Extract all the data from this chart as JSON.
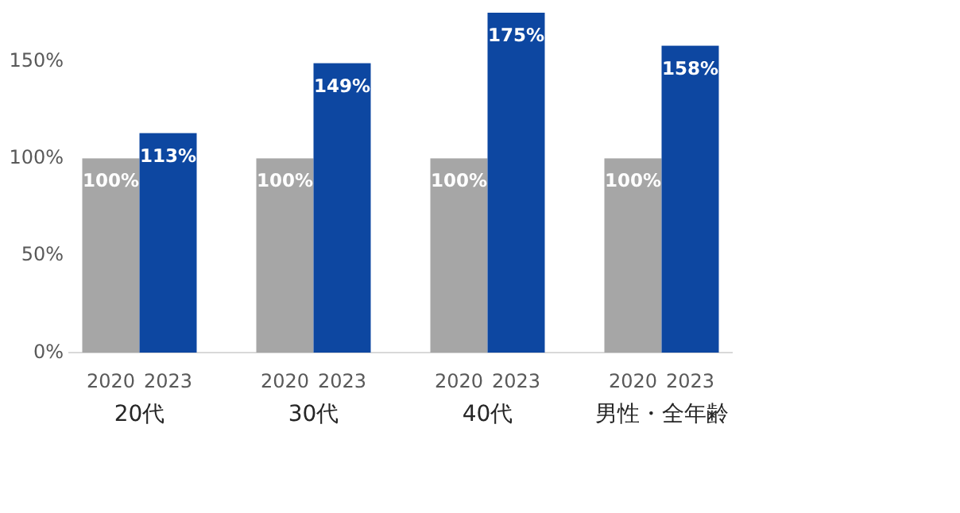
{
  "chart_data": {
    "type": "bar",
    "categories": [
      "20代",
      "30代",
      "40代",
      "男性・全年齢"
    ],
    "series": [
      {
        "name": "2020",
        "color": "#a6a6a6",
        "values": [
          100,
          100,
          100,
          100
        ],
        "value_labels": [
          "100%",
          "100%",
          "100%",
          "100%"
        ]
      },
      {
        "name": "2023",
        "color": "#0d47a1",
        "values": [
          113,
          149,
          175,
          158
        ],
        "value_labels": [
          "113%",
          "149%",
          "175%",
          "158%"
        ]
      }
    ],
    "ylim": [
      0,
      175
    ],
    "yticks": [
      {
        "value": 0,
        "label": "0%"
      },
      {
        "value": 50,
        "label": "50%"
      },
      {
        "value": 100,
        "label": "100%"
      },
      {
        "value": 150,
        "label": "150%"
      }
    ],
    "grid": false
  }
}
